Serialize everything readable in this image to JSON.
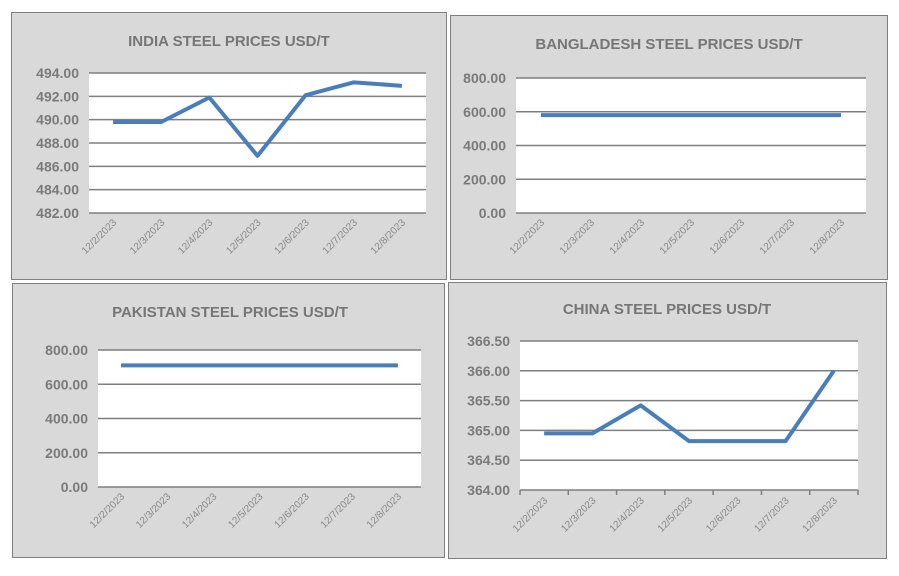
{
  "chart_data": [
    {
      "type": "line",
      "title": "INDIA STEEL PRICES USD/T",
      "categories": [
        "12/2/2023",
        "12/3/2023",
        "12/4/2023",
        "12/5/2023",
        "12/6/2023",
        "12/7/2023",
        "12/8/2023"
      ],
      "series": [
        {
          "name": "India",
          "values": [
            489.8,
            489.8,
            491.9,
            486.9,
            492.1,
            493.2,
            492.9
          ]
        }
      ],
      "yticks": [
        "482.00",
        "484.00",
        "486.00",
        "488.00",
        "490.00",
        "492.00",
        "494.00"
      ],
      "ylim": [
        482,
        494
      ],
      "grid": true,
      "color": "#4a7ebb"
    },
    {
      "type": "line",
      "title": "BANGLADESH STEEL PRICES USD/T",
      "categories": [
        "12/2/2023",
        "12/3/2023",
        "12/4/2023",
        "12/5/2023",
        "12/6/2023",
        "12/7/2023",
        "12/8/2023"
      ],
      "series": [
        {
          "name": "Bangladesh",
          "values": [
            580,
            580,
            580,
            580,
            580,
            580,
            580
          ]
        }
      ],
      "yticks": [
        "0.00",
        "200.00",
        "400.00",
        "600.00",
        "800.00"
      ],
      "ylim": [
        0,
        800
      ],
      "grid": true,
      "color": "#4a7ebb"
    },
    {
      "type": "line",
      "title": "PAKISTAN STEEL PRICES USD/T",
      "categories": [
        "12/2/2023",
        "12/3/2023",
        "12/4/2023",
        "12/5/2023",
        "12/6/2023",
        "12/7/2023",
        "12/8/2023"
      ],
      "series": [
        {
          "name": "Pakistan",
          "values": [
            710,
            710,
            710,
            710,
            710,
            710,
            710
          ]
        }
      ],
      "yticks": [
        "0.00",
        "200.00",
        "400.00",
        "600.00",
        "800.00"
      ],
      "ylim": [
        0,
        800
      ],
      "grid": true,
      "color": "#4a7ebb"
    },
    {
      "type": "line",
      "title": "CHINA STEEL PRICES USD/T",
      "categories": [
        "12/2/2023",
        "12/3/2023",
        "12/4/2023",
        "12/5/2023",
        "12/6/2023",
        "12/7/2023",
        "12/8/2023"
      ],
      "series": [
        {
          "name": "China",
          "values": [
            364.95,
            364.95,
            365.42,
            364.82,
            364.82,
            364.82,
            366.0
          ]
        }
      ],
      "yticks": [
        "364.00",
        "364.50",
        "365.00",
        "365.50",
        "366.00",
        "366.50"
      ],
      "ylim": [
        364,
        366.5
      ],
      "grid": true,
      "color": "#4a7ebb"
    }
  ]
}
